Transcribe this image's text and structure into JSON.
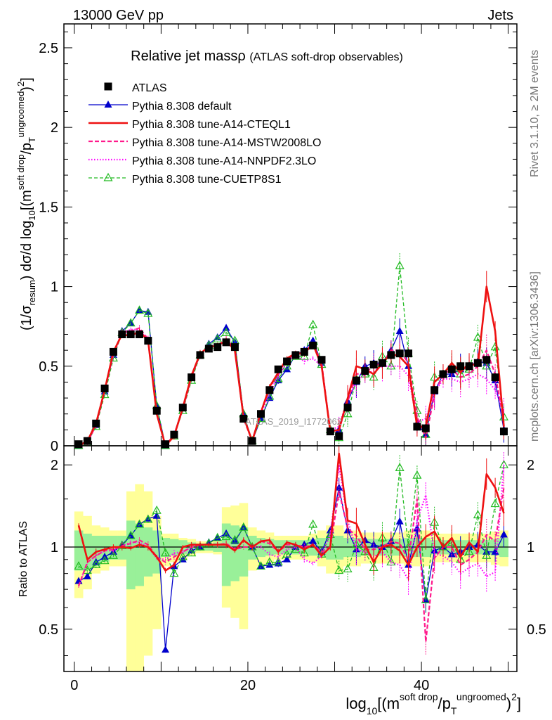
{
  "header": {
    "left": "13000 GeV pp",
    "right": "Jets"
  },
  "side_labels": {
    "top": "Rivet 3.1.10, ≥ 2M events",
    "bottom": "mcplots.cern.ch [arXiv:1306.3436]"
  },
  "watermark": "ATLAS_2019_I1772062",
  "colors": {
    "atlas": "#000000",
    "default": "#0000cc",
    "cteql1": "#ee1111",
    "mstw": "#ff1a8c",
    "nnpdf": "#ff00ff",
    "cuetp8s1": "#22bb22",
    "band_yellow": "#ffff99",
    "band_green": "#99f099"
  },
  "chart_data": [
    {
      "type": "line",
      "title": "Relative jet massρ",
      "subtitle": "(ATLAS soft-drop observables)",
      "ylabel": "(1/σ_resum) dσ/d log10[(m^soft drop/p_T^ungroomed)^2]",
      "xlim": [
        -1.2,
        51
      ],
      "ylim": [
        0,
        2.65
      ],
      "yticks": [
        0,
        0.5,
        1,
        1.5,
        2,
        2.5
      ],
      "ytick_labels": [
        "0",
        "0.5",
        "1",
        "1.5",
        "2",
        "2.5"
      ],
      "legend_position": "top-left",
      "x": [
        0.5,
        1.5,
        2.5,
        3.5,
        4.5,
        5.5,
        6.5,
        7.5,
        8.5,
        9.5,
        10.5,
        11.5,
        12.5,
        13.5,
        14.5,
        15.5,
        16.5,
        17.5,
        18.5,
        19.5,
        20.5,
        21.5,
        22.5,
        23.5,
        24.5,
        25.5,
        26.5,
        27.5,
        28.5,
        29.5,
        30.5,
        31.5,
        32.5,
        33.5,
        34.5,
        35.5,
        36.5,
        37.5,
        38.5,
        39.5,
        40.5,
        41.5,
        42.5,
        43.5,
        44.5,
        45.5,
        46.5,
        47.5,
        48.5,
        49.5
      ],
      "series": [
        {
          "name": "ATLAS",
          "key": "atlas",
          "values": [
            0.01,
            0.03,
            0.14,
            0.36,
            0.59,
            0.7,
            0.7,
            0.7,
            0.66,
            0.22,
            0.01,
            0.07,
            0.24,
            0.43,
            0.57,
            0.61,
            0.62,
            0.65,
            0.62,
            0.17,
            0.03,
            0.2,
            0.35,
            0.48,
            0.53,
            0.57,
            0.59,
            0.63,
            0.54,
            0.09,
            0.06,
            0.24,
            0.41,
            0.47,
            0.51,
            0.52,
            0.57,
            0.58,
            0.58,
            0.12,
            0.11,
            0.35,
            0.45,
            0.48,
            0.5,
            0.5,
            0.52,
            0.54,
            0.43,
            0.09
          ]
        },
        {
          "name": "Pythia 8.308 default",
          "key": "default",
          "values": [
            0.0,
            0.03,
            0.13,
            0.34,
            0.57,
            0.72,
            0.77,
            0.85,
            0.84,
            0.25,
            0.0,
            0.07,
            0.24,
            0.43,
            0.57,
            0.64,
            0.68,
            0.74,
            0.65,
            0.2,
            0.03,
            0.17,
            0.3,
            0.41,
            0.48,
            0.57,
            0.6,
            0.66,
            0.52,
            0.1,
            0.1,
            0.28,
            0.4,
            0.5,
            0.52,
            0.52,
            0.6,
            0.72,
            0.5,
            0.14,
            0.07,
            0.34,
            0.45,
            0.45,
            0.48,
            0.5,
            0.53,
            0.52,
            0.41,
            0.1
          ]
        },
        {
          "name": "Pythia 8.308 tune-A14-CTEQL1",
          "key": "cteql1",
          "values": [
            0.0,
            0.03,
            0.14,
            0.35,
            0.59,
            0.7,
            0.69,
            0.72,
            0.66,
            0.2,
            0.0,
            0.06,
            0.24,
            0.44,
            0.58,
            0.62,
            0.63,
            0.66,
            0.6,
            0.18,
            0.03,
            0.21,
            0.37,
            0.46,
            0.55,
            0.58,
            0.58,
            0.64,
            0.5,
            0.09,
            0.1,
            0.3,
            0.5,
            0.48,
            0.45,
            0.52,
            0.58,
            0.56,
            0.5,
            0.12,
            0.12,
            0.4,
            0.45,
            0.52,
            0.46,
            0.52,
            0.5,
            1.0,
            0.72,
            0.12
          ]
        },
        {
          "name": "Pythia 8.308 tune-A14-MSTW2008LO",
          "key": "mstw",
          "values": [
            0.0,
            0.02,
            0.13,
            0.35,
            0.58,
            0.71,
            0.72,
            0.74,
            0.67,
            0.2,
            0.0,
            0.07,
            0.23,
            0.43,
            0.58,
            0.62,
            0.63,
            0.67,
            0.61,
            0.17,
            0.03,
            0.21,
            0.36,
            0.46,
            0.54,
            0.58,
            0.59,
            0.64,
            0.52,
            0.09,
            0.1,
            0.28,
            0.45,
            0.46,
            0.5,
            0.52,
            0.6,
            0.6,
            0.52,
            0.18,
            0.05,
            0.32,
            0.45,
            0.48,
            0.43,
            0.45,
            0.5,
            0.6,
            0.45,
            0.15
          ]
        },
        {
          "name": "Pythia 8.308 tune-A14-NNPDF2.3LO",
          "key": "nnpdf",
          "values": [
            0.0,
            0.02,
            0.13,
            0.35,
            0.57,
            0.71,
            0.73,
            0.73,
            0.66,
            0.2,
            0.0,
            0.07,
            0.23,
            0.43,
            0.58,
            0.62,
            0.63,
            0.66,
            0.61,
            0.18,
            0.03,
            0.2,
            0.33,
            0.44,
            0.52,
            0.57,
            0.53,
            0.55,
            0.5,
            0.1,
            0.12,
            0.3,
            0.4,
            0.45,
            0.47,
            0.5,
            0.5,
            0.5,
            0.44,
            0.15,
            0.17,
            0.33,
            0.42,
            0.42,
            0.4,
            0.42,
            0.45,
            0.42,
            0.35,
            0.22
          ]
        },
        {
          "name": "Pythia 8.308 tune-CUETP8S1",
          "key": "cuetp8s1",
          "values": [
            0.0,
            0.02,
            0.12,
            0.32,
            0.55,
            0.71,
            0.77,
            0.85,
            0.83,
            0.25,
            0.0,
            0.06,
            0.22,
            0.41,
            0.57,
            0.63,
            0.67,
            0.71,
            0.66,
            0.2,
            0.03,
            0.17,
            0.31,
            0.42,
            0.5,
            0.56,
            0.56,
            0.76,
            0.51,
            0.1,
            0.05,
            0.2,
            0.42,
            0.45,
            0.43,
            0.56,
            0.5,
            1.13,
            0.58,
            0.22,
            0.07,
            0.43,
            0.45,
            0.5,
            0.45,
            0.48,
            0.68,
            0.5,
            0.62,
            0.18
          ]
        }
      ]
    },
    {
      "type": "line",
      "ylabel": "Ratio to ATLAS",
      "xlabel": "log10[(m^soft drop/p_T^ungroomed)^2]",
      "xlim": [
        -1.2,
        51
      ],
      "ylim": [
        0.35,
        2.35
      ],
      "yscale": "log",
      "yticks": [
        0.5,
        1,
        2
      ],
      "ytick_labels": [
        "0.5",
        "1",
        "2"
      ],
      "xticks": [
        0,
        20,
        40
      ],
      "xtick_labels": [
        "0",
        "20",
        "40"
      ],
      "bands_note": "ATLAS uncertainty bands (yellow: total, green: inner)",
      "band_yellow": [
        [
          0.65,
          1.35
        ],
        [
          0.7,
          1.3
        ],
        [
          0.8,
          1.2
        ],
        [
          0.82,
          1.18
        ],
        [
          0.85,
          1.15
        ],
        [
          0.85,
          1.15
        ],
        [
          0.35,
          1.6
        ],
        [
          0.35,
          1.7
        ],
        [
          0.4,
          1.6
        ],
        [
          0.5,
          1.3
        ],
        [
          0.85,
          1.12
        ],
        [
          0.88,
          1.12
        ],
        [
          0.9,
          1.08
        ],
        [
          0.93,
          1.07
        ],
        [
          0.95,
          1.05
        ],
        [
          0.95,
          1.05
        ],
        [
          0.94,
          1.06
        ],
        [
          0.6,
          1.4
        ],
        [
          0.55,
          1.42
        ],
        [
          0.5,
          1.45
        ],
        [
          0.82,
          1.18
        ],
        [
          0.85,
          1.15
        ],
        [
          0.87,
          1.13
        ],
        [
          0.9,
          1.1
        ],
        [
          0.9,
          1.1
        ],
        [
          0.9,
          1.1
        ],
        [
          0.9,
          1.1
        ],
        [
          0.88,
          1.12
        ],
        [
          0.85,
          1.15
        ],
        [
          0.8,
          1.2
        ],
        [
          0.8,
          1.2
        ],
        [
          0.85,
          1.15
        ],
        [
          0.85,
          1.15
        ],
        [
          0.87,
          1.13
        ],
        [
          0.87,
          1.13
        ],
        [
          0.87,
          1.13
        ],
        [
          0.87,
          1.13
        ],
        [
          0.87,
          1.13
        ],
        [
          0.85,
          1.15
        ],
        [
          0.85,
          1.15
        ],
        [
          0.85,
          1.15
        ],
        [
          0.88,
          1.12
        ],
        [
          0.88,
          1.12
        ],
        [
          0.88,
          1.12
        ],
        [
          0.88,
          1.12
        ],
        [
          0.88,
          1.12
        ],
        [
          0.88,
          1.12
        ],
        [
          0.88,
          1.12
        ],
        [
          0.86,
          1.14
        ],
        [
          0.85,
          1.15
        ]
      ],
      "band_green": [
        [
          0.82,
          1.15
        ],
        [
          0.82,
          1.12
        ],
        [
          0.85,
          1.1
        ],
        [
          0.88,
          1.1
        ],
        [
          0.9,
          1.1
        ],
        [
          0.9,
          1.1
        ],
        [
          0.7,
          1.25
        ],
        [
          0.72,
          1.22
        ],
        [
          0.78,
          1.18
        ],
        [
          0.8,
          1.15
        ],
        [
          0.92,
          1.08
        ],
        [
          0.93,
          1.07
        ],
        [
          0.94,
          1.06
        ],
        [
          0.96,
          1.04
        ],
        [
          0.97,
          1.03
        ],
        [
          0.97,
          1.03
        ],
        [
          0.96,
          1.04
        ],
        [
          0.72,
          1.22
        ],
        [
          0.75,
          1.2
        ],
        [
          0.78,
          1.18
        ],
        [
          0.9,
          1.1
        ],
        [
          0.92,
          1.08
        ],
        [
          0.93,
          1.07
        ],
        [
          0.94,
          1.06
        ],
        [
          0.94,
          1.06
        ],
        [
          0.94,
          1.06
        ],
        [
          0.94,
          1.06
        ],
        [
          0.93,
          1.07
        ],
        [
          0.92,
          1.08
        ],
        [
          0.9,
          1.1
        ],
        [
          0.9,
          1.1
        ],
        [
          0.92,
          1.08
        ],
        [
          0.92,
          1.08
        ],
        [
          0.93,
          1.07
        ],
        [
          0.93,
          1.07
        ],
        [
          0.93,
          1.07
        ],
        [
          0.93,
          1.07
        ],
        [
          0.93,
          1.07
        ],
        [
          0.92,
          1.08
        ],
        [
          0.92,
          1.08
        ],
        [
          0.92,
          1.08
        ],
        [
          0.94,
          1.06
        ],
        [
          0.94,
          1.06
        ],
        [
          0.94,
          1.06
        ],
        [
          0.94,
          1.06
        ],
        [
          0.94,
          1.06
        ],
        [
          0.94,
          1.06
        ],
        [
          0.94,
          1.06
        ],
        [
          0.93,
          1.07
        ],
        [
          0.92,
          1.08
        ]
      ],
      "ratios": {
        "default": [
          0.75,
          0.78,
          0.88,
          0.92,
          0.96,
          1.02,
          1.1,
          1.21,
          1.27,
          1.3,
          0.42,
          0.85,
          0.9,
          0.97,
          1.0,
          1.04,
          1.08,
          1.12,
          1.05,
          1.18,
          1.0,
          0.85,
          0.86,
          0.87,
          0.9,
          1.0,
          1.02,
          1.05,
          0.96,
          1.15,
          1.65,
          1.15,
          0.98,
          1.06,
          1.02,
          1.0,
          1.05,
          1.24,
          0.86,
          1.17,
          0.64,
          0.97,
          1.0,
          0.94,
          0.96,
          1.0,
          1.02,
          0.96,
          0.96,
          1.11
        ],
        "cteql1": [
          1.2,
          0.9,
          0.96,
          0.98,
          1.0,
          1.0,
          0.99,
          1.02,
          1.0,
          0.92,
          0.82,
          0.86,
          1.0,
          1.02,
          1.02,
          1.02,
          1.02,
          1.02,
          0.97,
          1.06,
          1.0,
          1.05,
          1.06,
          0.96,
          1.04,
          1.02,
          0.98,
          1.02,
          0.93,
          1.0,
          2.2,
          1.25,
          1.22,
          1.02,
          0.88,
          1.0,
          1.02,
          0.97,
          0.86,
          1.0,
          1.09,
          1.14,
          1.0,
          1.08,
          0.92,
          1.04,
          0.96,
          1.85,
          1.65,
          1.33
        ],
        "mstw": [
          0.72,
          0.88,
          0.93,
          0.97,
          0.98,
          1.01,
          1.03,
          1.06,
          1.02,
          0.92,
          0.88,
          0.92,
          0.96,
          1.0,
          1.02,
          1.02,
          1.02,
          1.03,
          0.98,
          1.0,
          1.0,
          1.05,
          1.03,
          0.96,
          1.02,
          1.02,
          1.0,
          1.02,
          0.96,
          1.0,
          1.6,
          1.17,
          1.1,
          0.98,
          0.98,
          1.0,
          1.05,
          1.03,
          0.9,
          1.5,
          0.45,
          0.91,
          1.0,
          1.0,
          0.86,
          0.9,
          0.96,
          1.11,
          1.05,
          1.65
        ],
        "nnpdf": [
          0.72,
          0.88,
          0.93,
          0.97,
          0.97,
          1.01,
          1.04,
          1.04,
          1.0,
          0.91,
          0.9,
          0.95,
          0.96,
          1.0,
          1.02,
          1.02,
          1.02,
          1.02,
          0.98,
          1.06,
          1.0,
          1.0,
          0.94,
          0.92,
          0.98,
          1.0,
          0.9,
          0.87,
          0.93,
          1.11,
          2.0,
          1.25,
          0.98,
          0.96,
          0.92,
          0.96,
          0.88,
          0.86,
          0.76,
          1.25,
          1.55,
          0.94,
          0.93,
          0.88,
          0.8,
          0.84,
          0.87,
          0.78,
          0.81,
          2.0
        ],
        "cuetp8s1": [
          0.85,
          0.82,
          0.86,
          0.89,
          0.93,
          1.01,
          1.1,
          1.21,
          1.26,
          1.36,
          0.95,
          0.8,
          0.92,
          0.95,
          1.0,
          1.03,
          1.08,
          1.09,
          1.06,
          1.18,
          1.0,
          0.85,
          0.88,
          0.88,
          0.94,
          0.98,
          0.95,
          1.21,
          0.94,
          1.11,
          0.82,
          0.83,
          1.02,
          0.96,
          0.84,
          1.08,
          0.88,
          1.95,
          1.0,
          1.83,
          0.64,
          1.23,
          1.0,
          1.04,
          0.9,
          0.96,
          1.31,
          0.93,
          1.44,
          2.0
        ]
      }
    }
  ]
}
